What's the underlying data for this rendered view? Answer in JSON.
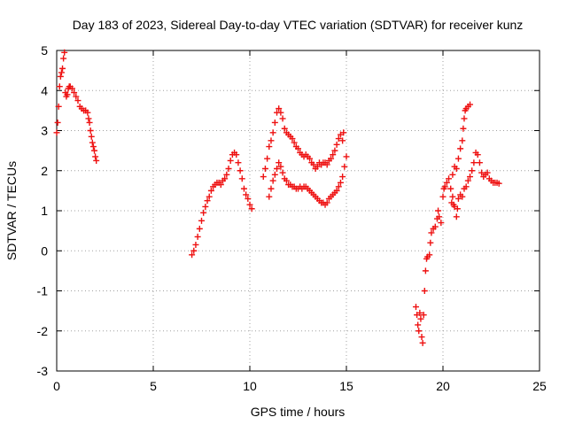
{
  "chart_data": {
    "type": "scatter",
    "title": "Day 183 of 2023, Sidereal Day-to-day VTEC variation (SDTVAR) for receiver kunz",
    "xlabel": "GPS time / hours",
    "ylabel": "SDTVAR / TECUs",
    "xlim": [
      0,
      25
    ],
    "ylim": [
      -3,
      5
    ],
    "xticks": [
      "0",
      "5",
      "10",
      "15",
      "20",
      "25"
    ],
    "yticks": [
      "-3",
      "-2",
      "-1",
      "0",
      "1",
      "2",
      "3",
      "4",
      "5"
    ],
    "grid": true,
    "marker": "plus",
    "color": "#ee1111",
    "series": [
      {
        "points": [
          [
            0.0,
            2.95
          ],
          [
            0.05,
            3.2
          ],
          [
            0.1,
            3.6
          ],
          [
            0.15,
            4.1
          ],
          [
            0.2,
            4.35
          ],
          [
            0.25,
            4.45
          ],
          [
            0.3,
            4.55
          ],
          [
            0.35,
            4.8
          ],
          [
            0.4,
            4.95
          ],
          [
            0.45,
            3.95
          ],
          [
            0.5,
            3.85
          ],
          [
            0.55,
            3.9
          ],
          [
            0.6,
            4.05
          ],
          [
            0.65,
            4.1
          ],
          [
            0.7,
            4.1
          ],
          [
            0.8,
            4.05
          ],
          [
            0.9,
            3.95
          ],
          [
            1.0,
            3.85
          ],
          [
            1.1,
            3.75
          ],
          [
            1.2,
            3.6
          ],
          [
            1.3,
            3.55
          ],
          [
            1.4,
            3.5
          ],
          [
            1.5,
            3.5
          ],
          [
            1.6,
            3.45
          ],
          [
            1.65,
            3.3
          ],
          [
            1.7,
            3.2
          ],
          [
            1.75,
            3.0
          ],
          [
            1.8,
            2.85
          ],
          [
            1.85,
            2.7
          ],
          [
            1.9,
            2.6
          ],
          [
            1.95,
            2.5
          ],
          [
            2.0,
            2.35
          ],
          [
            2.05,
            2.25
          ],
          [
            7.0,
            -0.1
          ],
          [
            7.1,
            0.0
          ],
          [
            7.2,
            0.15
          ],
          [
            7.3,
            0.35
          ],
          [
            7.4,
            0.55
          ],
          [
            7.5,
            0.75
          ],
          [
            7.6,
            0.95
          ],
          [
            7.7,
            1.1
          ],
          [
            7.8,
            1.25
          ],
          [
            7.9,
            1.35
          ],
          [
            8.0,
            1.5
          ],
          [
            8.1,
            1.6
          ],
          [
            8.2,
            1.65
          ],
          [
            8.3,
            1.7
          ],
          [
            8.4,
            1.7
          ],
          [
            8.5,
            1.65
          ],
          [
            8.6,
            1.75
          ],
          [
            8.7,
            1.8
          ],
          [
            8.8,
            1.9
          ],
          [
            8.9,
            2.05
          ],
          [
            9.0,
            2.25
          ],
          [
            9.1,
            2.4
          ],
          [
            9.2,
            2.45
          ],
          [
            9.3,
            2.4
          ],
          [
            9.4,
            2.2
          ],
          [
            9.5,
            2.0
          ],
          [
            9.6,
            1.8
          ],
          [
            9.7,
            1.55
          ],
          [
            9.8,
            1.4
          ],
          [
            9.9,
            1.3
          ],
          [
            10.0,
            1.15
          ],
          [
            10.1,
            1.05
          ],
          [
            10.7,
            1.85
          ],
          [
            10.8,
            2.05
          ],
          [
            10.9,
            2.3
          ],
          [
            11.0,
            2.6
          ],
          [
            11.1,
            2.75
          ],
          [
            11.2,
            2.95
          ],
          [
            11.3,
            3.2
          ],
          [
            11.4,
            3.45
          ],
          [
            11.5,
            3.55
          ],
          [
            11.6,
            3.45
          ],
          [
            11.7,
            3.3
          ],
          [
            11.8,
            3.05
          ],
          [
            11.9,
            2.95
          ],
          [
            12.0,
            2.9
          ],
          [
            12.1,
            2.85
          ],
          [
            12.2,
            2.8
          ],
          [
            12.3,
            2.7
          ],
          [
            12.4,
            2.6
          ],
          [
            12.5,
            2.55
          ],
          [
            12.6,
            2.45
          ],
          [
            12.7,
            2.4
          ],
          [
            12.8,
            2.35
          ],
          [
            12.9,
            2.4
          ],
          [
            13.0,
            2.35
          ],
          [
            13.1,
            2.3
          ],
          [
            13.2,
            2.2
          ],
          [
            13.3,
            2.15
          ],
          [
            13.4,
            2.05
          ],
          [
            13.5,
            2.1
          ],
          [
            13.6,
            2.2
          ],
          [
            13.7,
            2.15
          ],
          [
            13.8,
            2.2
          ],
          [
            13.9,
            2.2
          ],
          [
            14.0,
            2.15
          ],
          [
            14.1,
            2.25
          ],
          [
            14.2,
            2.3
          ],
          [
            14.3,
            2.4
          ],
          [
            14.4,
            2.5
          ],
          [
            14.5,
            2.65
          ],
          [
            14.6,
            2.8
          ],
          [
            14.7,
            2.9
          ],
          [
            14.8,
            2.75
          ],
          [
            14.85,
            2.95
          ],
          [
            11.0,
            1.35
          ],
          [
            11.1,
            1.55
          ],
          [
            11.2,
            1.75
          ],
          [
            11.3,
            1.9
          ],
          [
            11.4,
            2.05
          ],
          [
            11.5,
            2.2
          ],
          [
            11.6,
            2.1
          ],
          [
            11.7,
            1.95
          ],
          [
            11.8,
            1.8
          ],
          [
            11.9,
            1.75
          ],
          [
            12.0,
            1.65
          ],
          [
            12.1,
            1.65
          ],
          [
            12.2,
            1.6
          ],
          [
            12.3,
            1.6
          ],
          [
            12.4,
            1.55
          ],
          [
            12.5,
            1.55
          ],
          [
            12.6,
            1.6
          ],
          [
            12.7,
            1.55
          ],
          [
            12.8,
            1.6
          ],
          [
            12.9,
            1.6
          ],
          [
            13.0,
            1.55
          ],
          [
            13.1,
            1.5
          ],
          [
            13.2,
            1.45
          ],
          [
            13.3,
            1.4
          ],
          [
            13.4,
            1.35
          ],
          [
            13.5,
            1.3
          ],
          [
            13.6,
            1.25
          ],
          [
            13.7,
            1.2
          ],
          [
            13.8,
            1.2
          ],
          [
            13.9,
            1.15
          ],
          [
            14.0,
            1.2
          ],
          [
            14.1,
            1.3
          ],
          [
            14.2,
            1.35
          ],
          [
            14.3,
            1.4
          ],
          [
            14.4,
            1.45
          ],
          [
            14.5,
            1.5
          ],
          [
            14.6,
            1.6
          ],
          [
            14.7,
            1.7
          ],
          [
            14.8,
            1.85
          ],
          [
            14.9,
            2.1
          ],
          [
            15.0,
            2.35
          ],
          [
            18.6,
            -1.4
          ],
          [
            18.65,
            -1.6
          ],
          [
            18.7,
            -1.85
          ],
          [
            18.75,
            -2.0
          ],
          [
            18.8,
            -1.55
          ],
          [
            18.85,
            -1.7
          ],
          [
            18.9,
            -2.15
          ],
          [
            18.95,
            -2.3
          ],
          [
            19.0,
            -1.6
          ],
          [
            19.05,
            -1.0
          ],
          [
            19.1,
            -0.5
          ],
          [
            19.15,
            -0.2
          ],
          [
            19.2,
            -0.15
          ],
          [
            19.3,
            -0.1
          ],
          [
            19.35,
            0.2
          ],
          [
            19.4,
            0.45
          ],
          [
            19.5,
            0.55
          ],
          [
            19.6,
            0.6
          ],
          [
            19.7,
            0.8
          ],
          [
            19.75,
            1.0
          ],
          [
            19.8,
            0.85
          ],
          [
            19.9,
            0.7
          ],
          [
            20.0,
            1.35
          ],
          [
            20.05,
            1.55
          ],
          [
            20.1,
            1.6
          ],
          [
            20.2,
            1.7
          ],
          [
            20.3,
            1.8
          ],
          [
            20.4,
            1.55
          ],
          [
            20.45,
            1.2
          ],
          [
            20.5,
            1.35
          ],
          [
            20.55,
            1.15
          ],
          [
            20.6,
            1.1
          ],
          [
            20.7,
            0.85
          ],
          [
            20.75,
            1.05
          ],
          [
            20.8,
            1.3
          ],
          [
            20.9,
            1.4
          ],
          [
            21.0,
            1.35
          ],
          [
            21.1,
            1.55
          ],
          [
            21.2,
            1.6
          ],
          [
            21.3,
            1.75
          ],
          [
            21.4,
            1.85
          ],
          [
            21.5,
            2.0
          ],
          [
            21.6,
            2.2
          ],
          [
            21.7,
            2.45
          ],
          [
            21.8,
            2.4
          ],
          [
            21.9,
            2.2
          ],
          [
            22.0,
            1.95
          ],
          [
            22.1,
            1.85
          ],
          [
            22.2,
            1.9
          ],
          [
            22.3,
            1.95
          ],
          [
            22.4,
            1.8
          ],
          [
            22.5,
            1.75
          ],
          [
            22.6,
            1.7
          ],
          [
            22.7,
            1.7
          ],
          [
            22.8,
            1.7
          ],
          [
            22.9,
            1.68
          ],
          [
            20.5,
            1.9
          ],
          [
            20.6,
            2.1
          ],
          [
            20.7,
            2.05
          ],
          [
            20.8,
            2.3
          ],
          [
            20.9,
            2.55
          ],
          [
            21.0,
            2.75
          ],
          [
            21.05,
            3.05
          ],
          [
            21.1,
            3.3
          ],
          [
            21.15,
            3.5
          ],
          [
            21.2,
            3.55
          ],
          [
            21.3,
            3.6
          ],
          [
            21.4,
            3.65
          ]
        ]
      }
    ]
  }
}
